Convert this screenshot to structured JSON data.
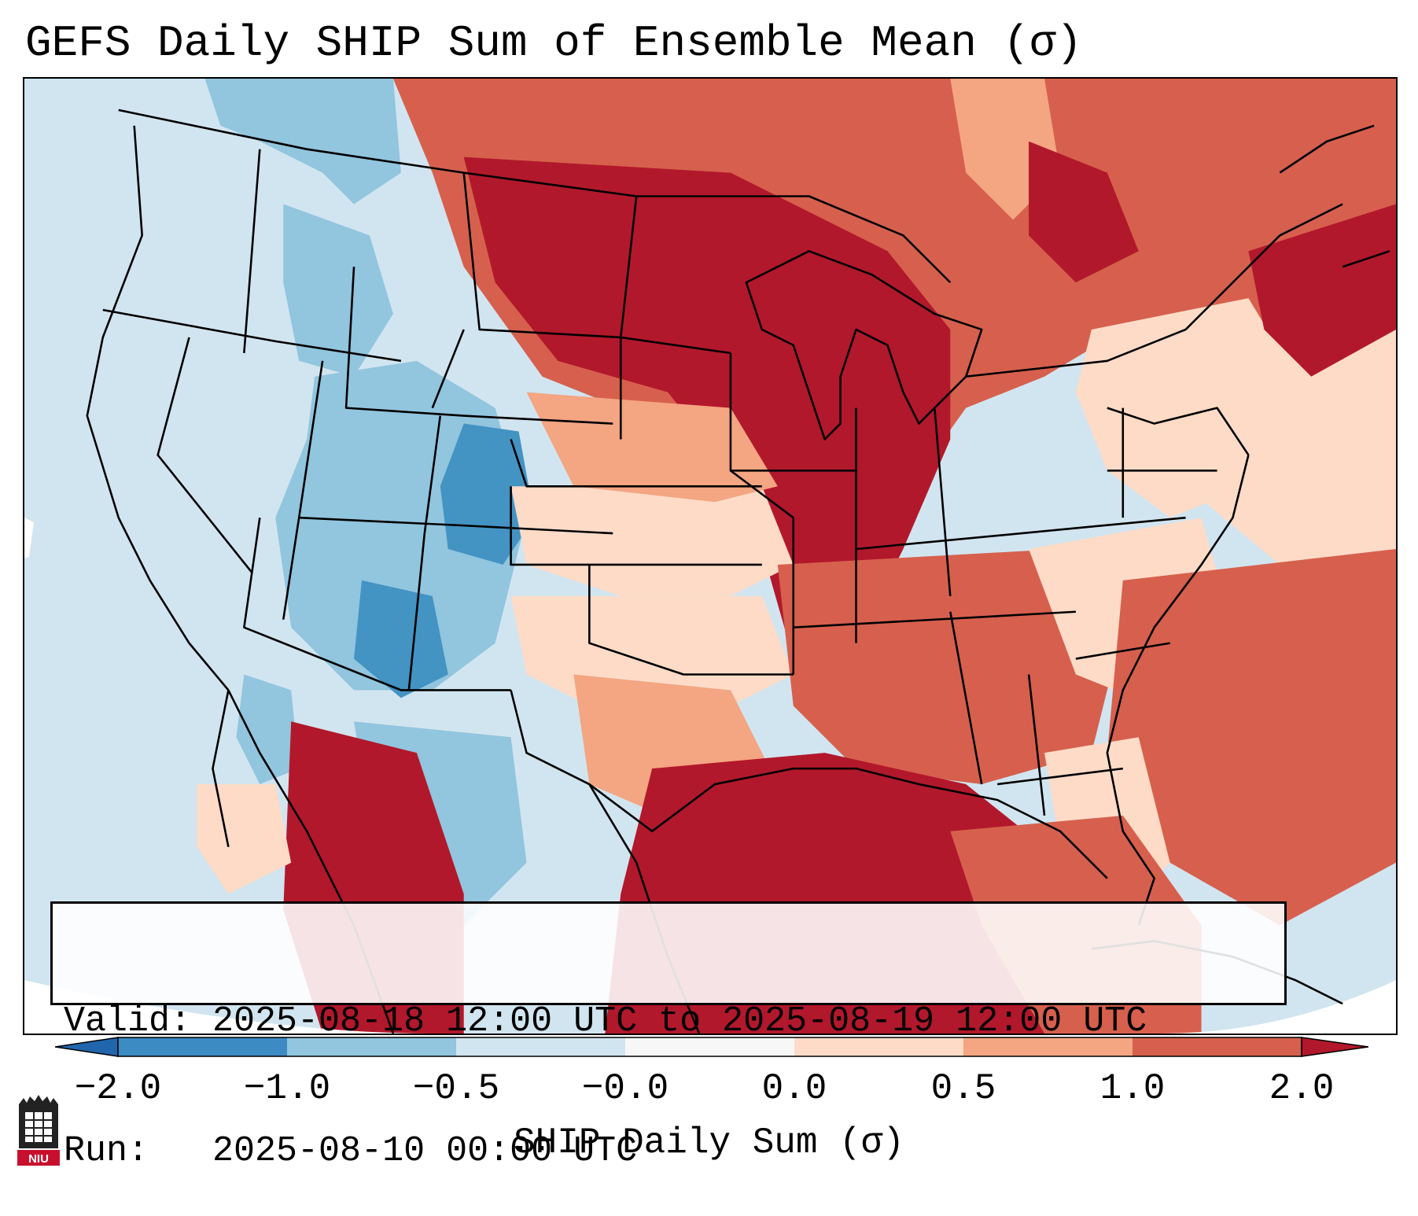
{
  "title": "GEFS Daily SHIP Sum of Ensemble Mean (σ)",
  "info": {
    "valid_line": "Valid: 2025-08-18 12:00 UTC to 2025-08-19 12:00 UTC",
    "run_line": "Run:   2025-08-10 00:00 UTC"
  },
  "colorbar": {
    "label": "SHIP Daily Sum (σ)",
    "ticks": [
      "−2.0",
      "−1.0",
      "−0.5",
      "−0.0",
      "0.0",
      "0.5",
      "1.0",
      "2.0"
    ],
    "colors": [
      "#3c8bc3",
      "#92c5de",
      "#d1e5f0",
      "#f7f7f7",
      "#fddbc7",
      "#f4a582",
      "#d6604d",
      "#b2182b"
    ],
    "under_color": "#2166ac",
    "over_color": "#b2182b"
  },
  "map": {
    "projection": "Lambert conformal CONUS",
    "region": "Contiguous United States, Gulf of Mexico, western Atlantic"
  },
  "logo": {
    "name": "NIU"
  }
}
